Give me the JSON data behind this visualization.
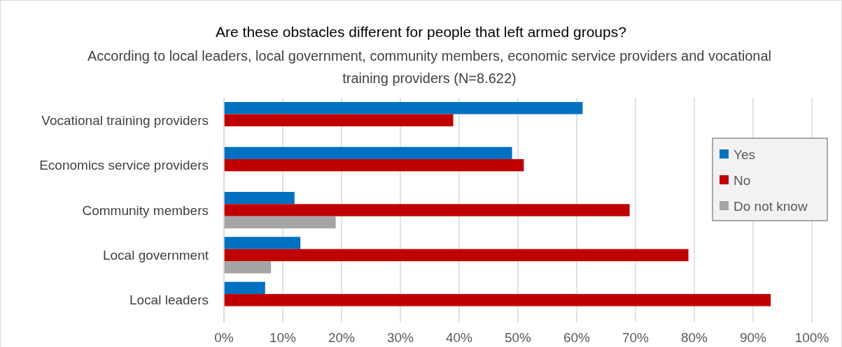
{
  "chart_data": {
    "type": "bar",
    "orientation": "horizontal",
    "title": "Are these obstacles different for people that left armed groups?",
    "subtitle": "According to local leaders, local government, community members, economic service providers and vocational training providers (N=8.622)",
    "categories": [
      "Vocational training providers",
      "Economics service providers",
      "Community members",
      "Local government",
      "Local leaders"
    ],
    "series": [
      {
        "name": "Yes",
        "color": "#0070c0",
        "values": [
          61,
          49,
          12,
          13,
          7
        ]
      },
      {
        "name": "No",
        "color": "#c00000",
        "values": [
          39,
          51,
          69,
          79,
          93
        ]
      },
      {
        "name": "Do not know",
        "color": "#a5a5a5",
        "values": [
          null,
          null,
          19,
          8,
          null
        ]
      }
    ],
    "xlim": [
      0,
      100
    ],
    "xticks": [
      {
        "value": 0,
        "label": "0%"
      },
      {
        "value": 10,
        "label": "10%"
      },
      {
        "value": 20,
        "label": "20%"
      },
      {
        "value": 30,
        "label": "30%"
      },
      {
        "value": 40,
        "label": "40%"
      },
      {
        "value": 50,
        "label": "50%"
      },
      {
        "value": 60,
        "label": "60%"
      },
      {
        "value": 70,
        "label": "70%"
      },
      {
        "value": 80,
        "label": "80%"
      },
      {
        "value": 90,
        "label": "90%"
      },
      {
        "value": 100,
        "label": "100%"
      }
    ],
    "grid": "x",
    "legend": "right"
  }
}
